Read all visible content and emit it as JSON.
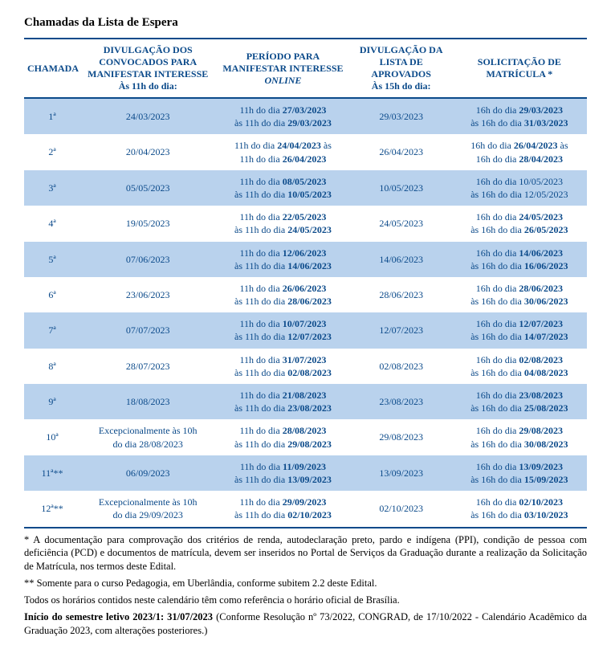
{
  "title": "Chamadas da Lista de Espera",
  "headers": {
    "chamada": "CHAMADA",
    "divulgacao_convocados": "DIVULGAÇÃO DOS CONVOCADOS PARA MANIFESTAR INTERESSE",
    "divulgacao_convocados_sub": "Às 11h do dia:",
    "periodo": "PERÍODO PARA MANIFESTAR INTERESSE ",
    "periodo_online": "ONLINE",
    "divulgacao_aprovados": "DIVULGAÇÃO DA LISTA DE APROVADOS",
    "divulgacao_aprovados_sub": "Às 15h do dia:",
    "solicitacao": "SOLICITAÇÃO DE MATRÍCULA *"
  },
  "rows": [
    {
      "chamada": "1ª",
      "div_conv": "24/03/2023",
      "periodo_l1a": "11h do dia ",
      "periodo_l1b": "27/03/2023",
      "periodo_l2a": "às 11h do dia ",
      "periodo_l2b": "29/03/2023",
      "aprov": "29/03/2023",
      "sol_l1a": "16h do dia ",
      "sol_l1b": "29/03/2023",
      "sol_l2a": "às 16h do dia ",
      "sol_l2b": "31/03/2023"
    },
    {
      "chamada": "2ª",
      "div_conv": "20/04/2023",
      "periodo_l1a": "11h do dia ",
      "periodo_l1b": "24/04/2023",
      "periodo_l1c": " às",
      "periodo_l2a": "11h do dia ",
      "periodo_l2b": "26/04/2023",
      "aprov": "26/04/2023",
      "sol_l1a": "16h do dia ",
      "sol_l1b": "26/04/2023",
      "sol_l1c": " às",
      "sol_l2a": "16h do dia ",
      "sol_l2b": "28/04/2023"
    },
    {
      "chamada": "3ª",
      "div_conv": "05/05/2023",
      "periodo_l1a": "11h do dia ",
      "periodo_l1b": "08/05/2023",
      "periodo_l2a": "às 11h do dia ",
      "periodo_l2b": "10/05/2023",
      "aprov": "10/05/2023",
      "sol_l1a": "16h do dia 10/05/2023",
      "sol_l1b": "",
      "sol_l2a": "às 16h do dia 12/05/2023",
      "sol_l2b": ""
    },
    {
      "chamada": "4ª",
      "div_conv": "19/05/2023",
      "periodo_l1a": "11h do dia ",
      "periodo_l1b": "22/05/2023",
      "periodo_l2a": "às 11h do dia ",
      "periodo_l2b": "24/05/2023",
      "aprov": "24/05/2023",
      "sol_l1a": "16h do dia ",
      "sol_l1b": "24/05/2023",
      "sol_l2a": "às 16h do dia ",
      "sol_l2b": "26/05/2023"
    },
    {
      "chamada": "5ª",
      "div_conv": "07/06/2023",
      "periodo_l1a": "11h do dia ",
      "periodo_l1b": "12/06/2023",
      "periodo_l2a": "às 11h do dia ",
      "periodo_l2b": "14/06/2023",
      "aprov": "14/06/2023",
      "sol_l1a": "16h do dia ",
      "sol_l1b": "14/06/2023",
      "sol_l2a": "às 16h do dia ",
      "sol_l2b": "16/06/2023"
    },
    {
      "chamada": "6ª",
      "div_conv": "23/06/2023",
      "periodo_l1a": "11h do dia ",
      "periodo_l1b": "26/06/2023",
      "periodo_l2a": "às 11h do dia ",
      "periodo_l2b": "28/06/2023",
      "aprov": "28/06/2023",
      "sol_l1a": "16h do dia ",
      "sol_l1b": "28/06/2023",
      "sol_l2a": "às 16h do dia ",
      "sol_l2b": "30/06/2023"
    },
    {
      "chamada": "7ª",
      "div_conv": "07/07/2023",
      "periodo_l1a": "11h do dia ",
      "periodo_l1b": "10/07/2023",
      "periodo_l2a": "às 11h do dia ",
      "periodo_l2b": "12/07/2023",
      "aprov": "12/07/2023",
      "sol_l1a": "16h do dia ",
      "sol_l1b": "12/07/2023",
      "sol_l2a": "às 16h do dia ",
      "sol_l2b": "14/07/2023"
    },
    {
      "chamada": "8ª",
      "div_conv": "28/07/2023",
      "periodo_l1a": "11h do dia ",
      "periodo_l1b": "31/07/2023",
      "periodo_l2a": "às 11h do dia ",
      "periodo_l2b": "02/08/2023",
      "aprov": "02/08/2023",
      "sol_l1a": "16h do dia ",
      "sol_l1b": "02/08/2023",
      "sol_l2a": "às 16h do dia ",
      "sol_l2b": "04/08/2023"
    },
    {
      "chamada": "9ª",
      "div_conv": "18/08/2023",
      "periodo_l1a": "11h do dia ",
      "periodo_l1b": "21/08/2023",
      "periodo_l2a": "às 11h do dia ",
      "periodo_l2b": "23/08/2023",
      "aprov": "23/08/2023",
      "sol_l1a": "16h do dia ",
      "sol_l1b": "23/08/2023",
      "sol_l2a": "às 16h do dia ",
      "sol_l2b": "25/08/2023"
    },
    {
      "chamada": "10ª",
      "div_conv_l1": "Excepcionalmente às 10h",
      "div_conv_l2": "do dia 28/08/2023",
      "periodo_l1a": "11h do dia ",
      "periodo_l1b": "28/08/2023",
      "periodo_l2a": "às 11h do dia ",
      "periodo_l2b": "29/08/2023",
      "aprov": "29/08/2023",
      "sol_l1a": "16h do dia ",
      "sol_l1b": "29/08/2023",
      "sol_l2a": "às 16h do dia ",
      "sol_l2b": "30/08/2023"
    },
    {
      "chamada": "11ª**",
      "div_conv": "06/09/2023",
      "periodo_l1a": "11h do dia ",
      "periodo_l1b": "11/09/2023",
      "periodo_l2a": "às 11h do dia ",
      "periodo_l2b": "13/09/2023",
      "aprov": "13/09/2023",
      "sol_l1a": "16h do dia ",
      "sol_l1b": "13/09/2023",
      "sol_l2a": "às 16h do dia ",
      "sol_l2b": "15/09/2023"
    },
    {
      "chamada": "12ª**",
      "div_conv_l1": "Excepcionalmente às 10h",
      "div_conv_l2": "do dia 29/09/2023",
      "periodo_l1a": "11h do dia ",
      "periodo_l1b": "29/09/2023",
      "periodo_l2a": "às 11h do dia ",
      "periodo_l2b": "02/10/2023",
      "aprov": "02/10/2023",
      "sol_l1a": "16h do dia ",
      "sol_l1b": "02/10/2023",
      "sol_l2a": "às 16h do dia ",
      "sol_l2b": "03/10/2023"
    }
  ],
  "notes": {
    "n1": "* A documentação para comprovação dos critérios de renda, autodeclaração preto, pardo e indígena (PPI), condição de pessoa com deficiência (PCD) e documentos de matrícula, devem ser inseridos no Portal de Serviços da Graduação durante a realização da Solicitação de Matrícula, nos termos deste Edital.",
    "n2": "** Somente para o curso Pedagogia, em Uberlândia, conforme subitem 2.2 deste Edital.",
    "n3": "Todos os horários contidos neste calendário têm como referência o horário oficial de Brasília.",
    "n4a": "Início do semestre letivo 2023/1: 31/07/2023",
    "n4b": " (Conforme Resolução nº 73/2022, CONGRAD, de 17/10/2022 - Calendário Acadêmico da Graduação 2023, com alterações posteriores.)"
  },
  "style": {
    "accent_color": "#0b4a8a",
    "row_odd_bg": "#b9d2ed",
    "row_even_bg": "#ffffff",
    "font_family": "Times New Roman"
  }
}
